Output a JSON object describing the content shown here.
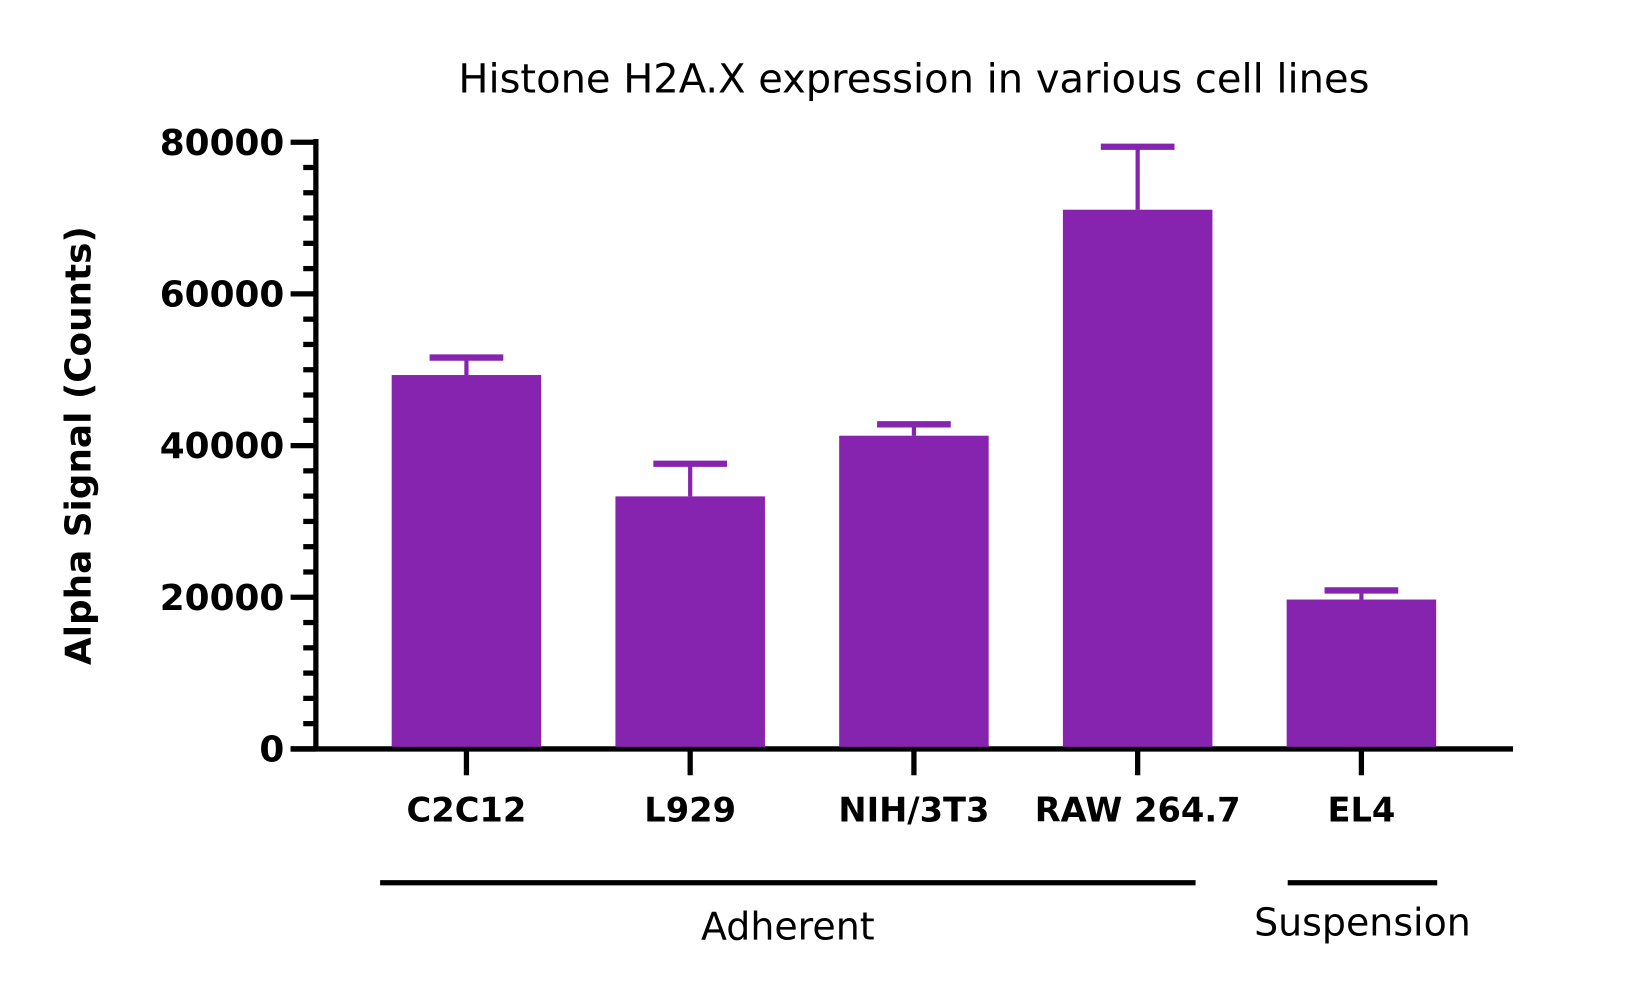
{
  "chart_data": {
    "type": "bar",
    "title": "Histone H2A.X expression in various cell lines",
    "xlabel": "",
    "ylabel": "Alpha Signal (Counts)",
    "ylim": [
      0,
      80000
    ],
    "yticks": [
      0,
      20000,
      40000,
      60000,
      80000
    ],
    "minor_ticks_per_interval": 5,
    "grid": false,
    "categories": [
      "C2C12",
      "L929",
      "NIH/3T3",
      "RAW 264.7",
      "EL4"
    ],
    "values": [
      49300,
      33300,
      41300,
      71100,
      19700
    ],
    "error_upper": [
      51600,
      37600,
      42800,
      79400,
      20900
    ],
    "bar_color": "#8624AF",
    "groups": [
      {
        "label": "Adherent",
        "categories": [
          "C2C12",
          "L929",
          "NIH/3T3",
          "RAW 264.7"
        ]
      },
      {
        "label": "Suspension",
        "categories": [
          "EL4"
        ]
      }
    ]
  }
}
